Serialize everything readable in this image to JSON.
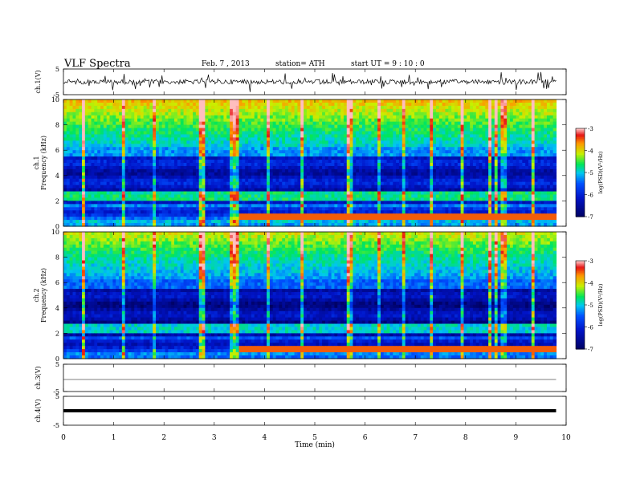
{
  "header": {
    "title": "VLF  Spectra",
    "date": "Feb. 7  , 2013",
    "station": "station= ATH",
    "start": "start  UT  =   9  : 10 : 0"
  },
  "chart_data": {
    "type": "heatmap",
    "title": "VLF  Spectra",
    "xlabel": "Time  (min)",
    "xlim": [
      0,
      10
    ],
    "x_ticks": [
      "0",
      "1",
      "2",
      "3",
      "4",
      "5",
      "6",
      "7",
      "8",
      "9",
      "10"
    ],
    "data_end_min": 9.8,
    "panels": [
      {
        "type": "line",
        "ylabel": "ch.1(V)",
        "ylim": [
          -5,
          5
        ],
        "y_ticks": [
          "5",
          "-5"
        ],
        "style": "noisy"
      },
      {
        "type": "heatmap",
        "ylabel": "Frequency  (kHz)",
        "channel": "ch.1",
        "ylim": [
          0,
          10
        ],
        "y_ticks": [
          "0",
          "2",
          "4",
          "6",
          "8",
          "10"
        ],
        "colorbar": {
          "label": "log(PSD)(V²/Hz)",
          "range": [
            -7,
            -3
          ],
          "ticks": [
            "-3",
            "-4",
            "-5",
            "-6",
            "-7"
          ]
        }
      },
      {
        "type": "heatmap",
        "ylabel": "Frequency  (kHz)",
        "channel": "ch.2",
        "ylim": [
          0,
          10
        ],
        "y_ticks": [
          "0",
          "2",
          "4",
          "6",
          "8",
          "10"
        ],
        "colorbar": {
          "label": "log(PSD)(V²/Hz)",
          "range": [
            -7,
            -3
          ],
          "ticks": [
            "-3",
            "-4",
            "-5",
            "-6",
            "-7"
          ]
        }
      },
      {
        "type": "line",
        "ylabel": "ch.3(V)",
        "ylim": [
          -5,
          5
        ],
        "y_ticks": [
          "5",
          "-5"
        ],
        "style": "flat"
      },
      {
        "type": "line",
        "ylabel": "ch.4(V)",
        "ylim": [
          -5,
          5
        ],
        "y_ticks": [
          "5",
          "-5"
        ],
        "style": "band"
      }
    ]
  }
}
